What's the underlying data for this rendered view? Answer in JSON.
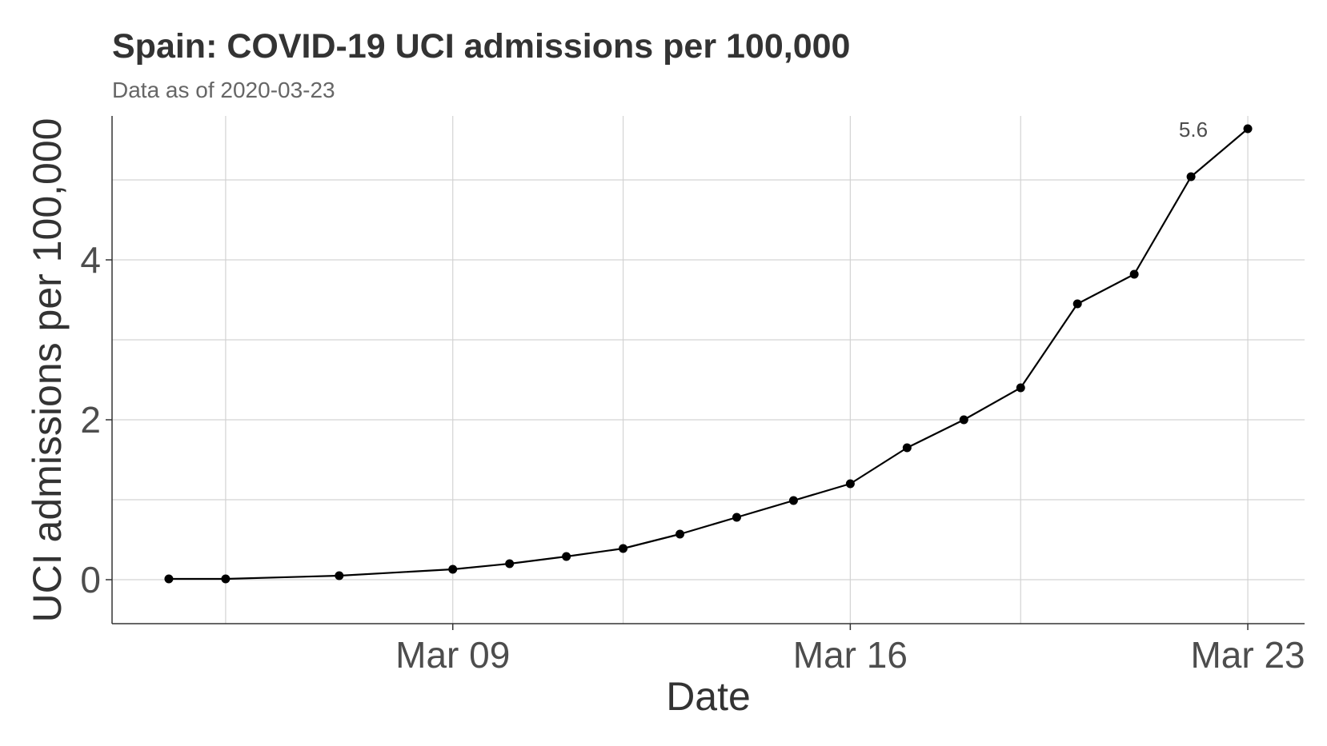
{
  "chart_data": {
    "type": "line",
    "title": "Spain: COVID-19 UCI admissions per 100,000",
    "subtitle": "Data as of 2020-03-23",
    "xlabel": "Date",
    "ylabel": "UCI admissions per 100,000",
    "x_tick_labels": [
      {
        "date": "2020-03-09",
        "label": "Mar 09"
      },
      {
        "date": "2020-03-16",
        "label": "Mar 16"
      },
      {
        "date": "2020-03-23",
        "label": "Mar 23"
      }
    ],
    "y_ticks": [
      0,
      2,
      4
    ],
    "xlim": [
      "2020-03-03",
      "2020-03-24"
    ],
    "ylim": [
      -0.55,
      5.8
    ],
    "grid": true,
    "legend": "none",
    "series": [
      {
        "points": [
          {
            "x": "2020-03-04",
            "y": 0.01
          },
          {
            "x": "2020-03-05",
            "y": 0.01
          },
          {
            "x": "2020-03-07",
            "y": 0.05
          },
          {
            "x": "2020-03-09",
            "y": 0.13
          },
          {
            "x": "2020-03-10",
            "y": 0.2
          },
          {
            "x": "2020-03-11",
            "y": 0.29
          },
          {
            "x": "2020-03-12",
            "y": 0.39
          },
          {
            "x": "2020-03-13",
            "y": 0.57
          },
          {
            "x": "2020-03-14",
            "y": 0.78
          },
          {
            "x": "2020-03-15",
            "y": 0.99
          },
          {
            "x": "2020-03-16",
            "y": 1.2
          },
          {
            "x": "2020-03-17",
            "y": 1.65
          },
          {
            "x": "2020-03-18",
            "y": 2.0
          },
          {
            "x": "2020-03-19",
            "y": 2.4
          },
          {
            "x": "2020-03-20",
            "y": 3.45
          },
          {
            "x": "2020-03-21",
            "y": 3.82
          },
          {
            "x": "2020-03-22",
            "y": 5.04
          },
          {
            "x": "2020-03-23",
            "y": 5.64
          }
        ]
      }
    ],
    "annotations": [
      {
        "x": "2020-03-23",
        "y": 5.64,
        "text": "5.6"
      }
    ],
    "colors": {
      "line": "#000000",
      "point": "#000000",
      "grid": "#d3d3d3",
      "axis": "#333333"
    }
  }
}
